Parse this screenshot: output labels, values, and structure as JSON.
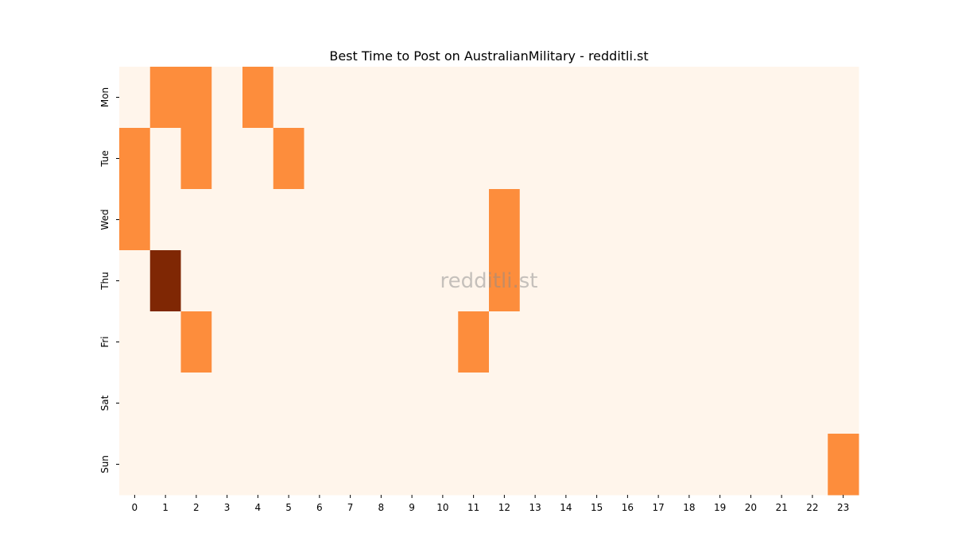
{
  "chart_data": {
    "type": "heatmap",
    "title": "Best Time to Post on AustralianMilitary - redditli.st",
    "watermark": "redditli.st",
    "xlabel": "",
    "ylabel": "",
    "x_categories": [
      "0",
      "1",
      "2",
      "3",
      "4",
      "5",
      "6",
      "7",
      "8",
      "9",
      "10",
      "11",
      "12",
      "13",
      "14",
      "15",
      "16",
      "17",
      "18",
      "19",
      "20",
      "21",
      "22",
      "23"
    ],
    "y_categories": [
      "Mon",
      "Tue",
      "Wed",
      "Thu",
      "Fri",
      "Sat",
      "Sun"
    ],
    "values": [
      [
        0,
        1,
        1,
        0,
        1,
        0,
        0,
        0,
        0,
        0,
        0,
        0,
        0,
        0,
        0,
        0,
        0,
        0,
        0,
        0,
        0,
        0,
        0,
        0
      ],
      [
        1,
        0,
        1,
        0,
        0,
        1,
        0,
        0,
        0,
        0,
        0,
        0,
        0,
        0,
        0,
        0,
        0,
        0,
        0,
        0,
        0,
        0,
        0,
        0
      ],
      [
        1,
        0,
        0,
        0,
        0,
        0,
        0,
        0,
        0,
        0,
        0,
        0,
        1,
        0,
        0,
        0,
        0,
        0,
        0,
        0,
        0,
        0,
        0,
        0
      ],
      [
        0,
        2,
        0,
        0,
        0,
        0,
        0,
        0,
        0,
        0,
        0,
        0,
        1,
        0,
        0,
        0,
        0,
        0,
        0,
        0,
        0,
        0,
        0,
        0
      ],
      [
        0,
        0,
        1,
        0,
        0,
        0,
        0,
        0,
        0,
        0,
        0,
        1,
        0,
        0,
        0,
        0,
        0,
        0,
        0,
        0,
        0,
        0,
        0,
        0
      ],
      [
        0,
        0,
        0,
        0,
        0,
        0,
        0,
        0,
        0,
        0,
        0,
        0,
        0,
        0,
        0,
        0,
        0,
        0,
        0,
        0,
        0,
        0,
        0,
        0
      ],
      [
        0,
        0,
        0,
        0,
        0,
        0,
        0,
        0,
        0,
        0,
        0,
        0,
        0,
        0,
        0,
        0,
        0,
        0,
        0,
        0,
        0,
        0,
        0,
        1
      ]
    ],
    "colorscale": "Oranges",
    "colors": {
      "0": "#fff5eb",
      "1": "#fd8d3c",
      "2": "#7f2704"
    },
    "grid": false,
    "legend": "none"
  }
}
